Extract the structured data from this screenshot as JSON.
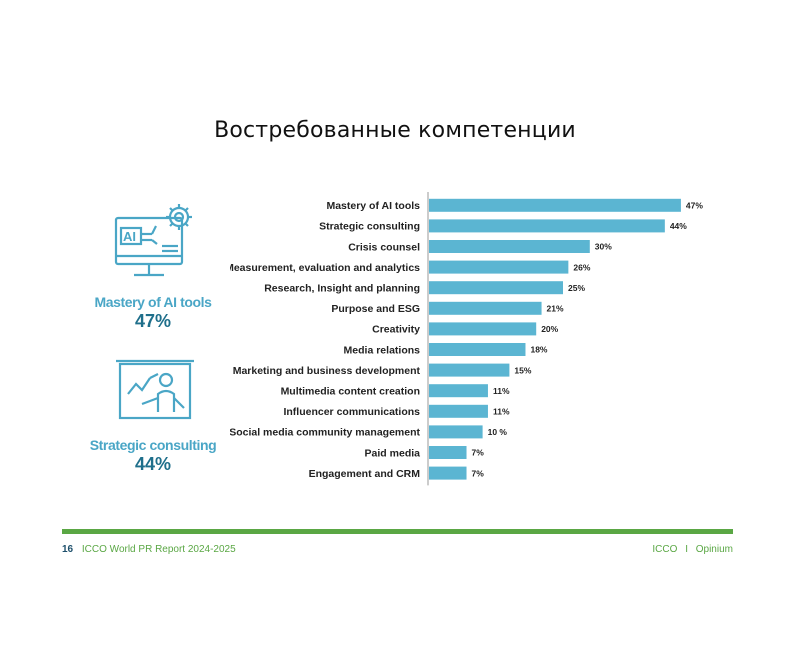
{
  "slide": {
    "title": "Востребованные компетенции"
  },
  "highlights": [
    {
      "label": "Mastery of AI tools",
      "value": "47%",
      "icon": "ai-monitor-gear-icon"
    },
    {
      "label": "Strategic consulting",
      "value": "44%",
      "icon": "presenter-board-icon"
    }
  ],
  "colors": {
    "bar": "#5bb5d2",
    "accent_label": "#4aa6c6",
    "accent_value": "#1f6f8b",
    "footer_green": "#5aa744"
  },
  "chart_data": {
    "type": "bar",
    "orientation": "horizontal",
    "categories": [
      "Mastery of AI tools",
      "Strategic consulting",
      "Crisis counsel",
      "Measurement, evaluation and analytics",
      "Research, Insight and planning",
      "Purpose and ESG",
      "Creativity",
      "Media relations",
      "Marketing and business development",
      "Multimedia content creation",
      "Influencer communications",
      "Social media community management",
      "Paid media",
      "Engagement and CRM"
    ],
    "values": [
      47,
      44,
      30,
      26,
      25,
      21,
      20,
      18,
      15,
      11,
      11,
      10,
      7,
      7
    ],
    "data_labels": [
      "47%",
      "44%",
      "30%",
      "26%",
      "25%",
      "21%",
      "20%",
      "18%",
      "15%",
      "11%",
      "11%",
      "10 %",
      "7%",
      "7%"
    ],
    "title": "",
    "xlabel": "",
    "ylabel": "",
    "xlim": [
      0,
      50
    ],
    "grid": false,
    "legend": "none"
  },
  "footer": {
    "page_number": "16",
    "report": "ICCO World PR Report 2024-2025",
    "brand_left": "ICCO",
    "separator": "I",
    "brand_right": "Opinium"
  }
}
